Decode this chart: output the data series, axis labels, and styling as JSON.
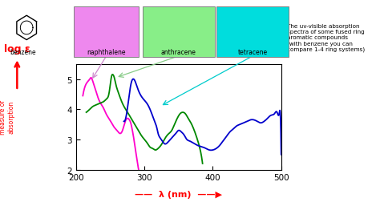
{
  "title": "The uv-visible absorption\nspectra of some fused ring\naromatic compounds\n(with benzene you can\ncompare 1-4 ring systems)",
  "xlabel": "λ (nm)",
  "xlim": [
    200,
    500
  ],
  "ylim": [
    2.0,
    5.5
  ],
  "yticks": [
    2.0,
    3.0,
    4.0,
    5.0
  ],
  "xticks": [
    200,
    300,
    400,
    500
  ],
  "bg_color": "#ffffff",
  "naphthalene_color": "#ff00cc",
  "anthracene_color": "#008800",
  "tetracene_color": "#0000cc",
  "naphthalene_box_color": "#ee88ee",
  "anthracene_box_color": "#88ee88",
  "tetracene_box_color": "#00dddd",
  "naph_arrow_color": "#cc88cc",
  "anth_arrow_color": "#88cc88",
  "tetr_arrow_color": "#00cccc"
}
